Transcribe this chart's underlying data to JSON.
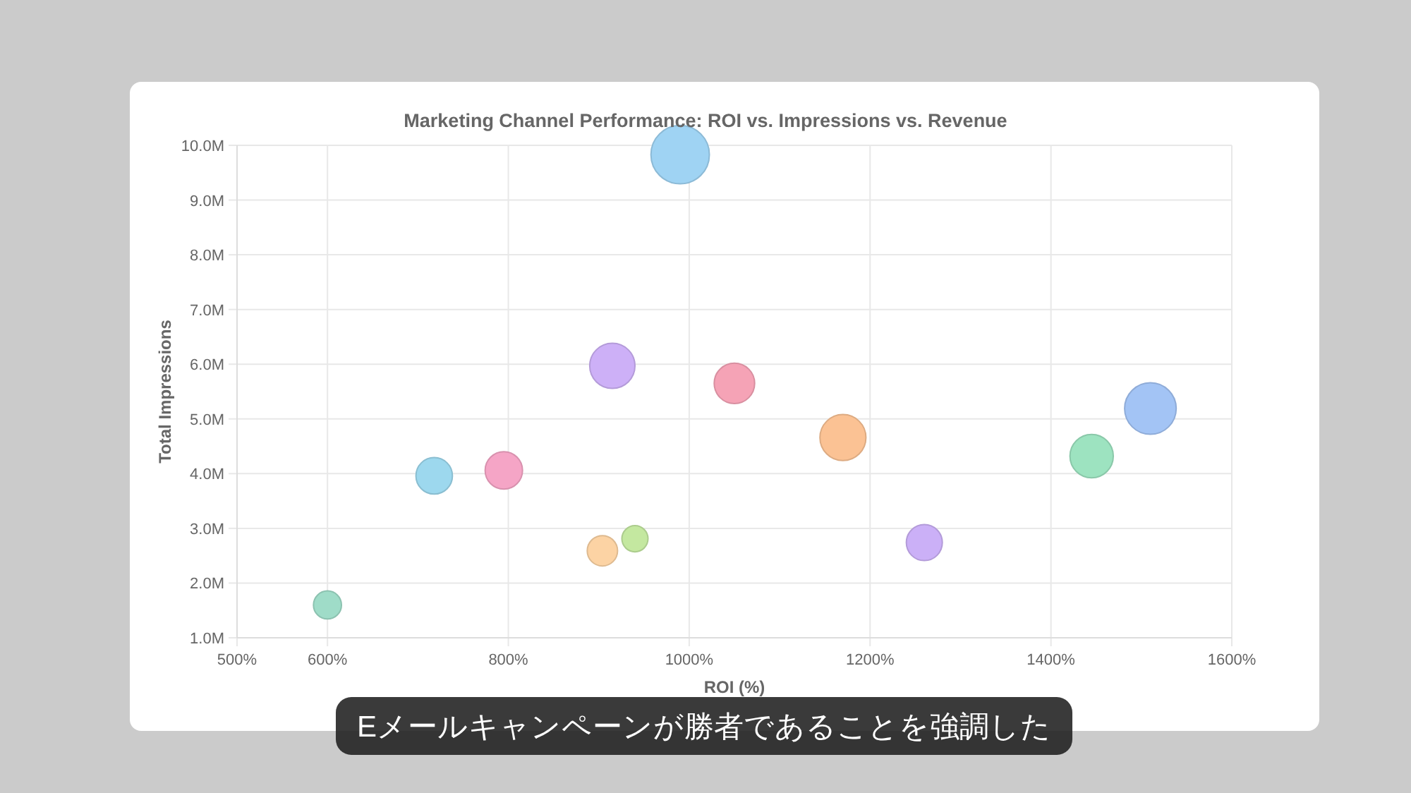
{
  "chart_data": {
    "type": "bubble",
    "title": "Marketing Channel Performance: ROI vs. Impressions vs. Revenue",
    "xlabel": "ROI (%)",
    "ylabel": "Total Impressions",
    "x": [
      990,
      915,
      1050,
      1170,
      1260,
      1445,
      1510,
      718,
      795,
      904,
      940,
      600
    ],
    "values": [
      9.83,
      5.97,
      5.65,
      4.66,
      2.74,
      4.32,
      5.19,
      3.96,
      4.06,
      2.59,
      2.81,
      1.6
    ],
    "sizes": [
      1,
      0.6,
      0.48,
      0.62,
      0.38,
      0.55,
      0.78,
      0.39,
      0.41,
      0.27,
      0.2,
      0.23
    ],
    "colors": [
      "#9fd3f3",
      "#cdb0f7",
      "#f5a3b6",
      "#fbc294",
      "#cbb0f7",
      "#9de3c0",
      "#a3c4f5",
      "#9dd8ee",
      "#f5a5c6",
      "#fcd3a4",
      "#c4e8a0",
      "#9fdcc8"
    ],
    "xlim": [
      500,
      1600
    ],
    "xticks": [
      {
        "value": 500,
        "label": "500%"
      },
      {
        "value": 600,
        "label": "600%"
      },
      {
        "value": 800,
        "label": "800%"
      },
      {
        "value": 1000,
        "label": "1000%"
      },
      {
        "value": 1200,
        "label": "1200%"
      },
      {
        "value": 1400,
        "label": "1400%"
      },
      {
        "value": 1600,
        "label": "1600%"
      }
    ],
    "ylim": [
      1,
      10
    ],
    "yticks": [
      {
        "value": 1,
        "label": "1.0M"
      },
      {
        "value": 2,
        "label": "2.0M"
      },
      {
        "value": 3,
        "label": "3.0M"
      },
      {
        "value": 4,
        "label": "4.0M"
      },
      {
        "value": 5,
        "label": "5.0M"
      },
      {
        "value": 6,
        "label": "6.0M"
      },
      {
        "value": 7,
        "label": "7.0M"
      },
      {
        "value": 8,
        "label": "8.0M"
      },
      {
        "value": 9,
        "label": "9.0M"
      },
      {
        "value": 10,
        "label": "10.0M"
      }
    ],
    "grid": true,
    "marker": "circle",
    "annotations": [
      "Eメールキャンペーンが勝者であることを強調した"
    ]
  }
}
